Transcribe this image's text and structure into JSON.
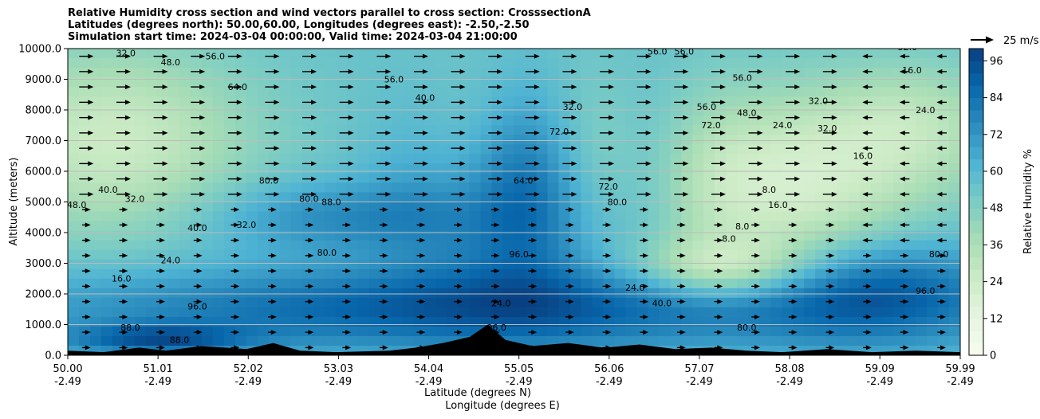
{
  "title": {
    "line1": "Relative Humidity cross section and wind vectors parallel to cross section: CrosssectionA",
    "line2": "Latitudes (degrees north): 50.00,60.00, Longitudes (degrees east): -2.50,-2.50",
    "line3": "Simulation start time: 2024-03-04 00:00:00, Valid time: 2024-03-04 21:00:00"
  },
  "chart_data": {
    "type": "heatmap",
    "subtype": "filled-contour cross section with wind vectors",
    "ylabel": "Altitude (meters)",
    "xlabel_lat": "Latitude (degrees N)",
    "xlabel_lon": "Longitude (degrees E)",
    "ylim": [
      0,
      10000
    ],
    "yticks": [
      "0.0",
      "1000.0",
      "2000.0",
      "3000.0",
      "4000.0",
      "5000.0",
      "6000.0",
      "7000.0",
      "8000.0",
      "9000.0",
      "10000.0"
    ],
    "ytick_values": [
      0,
      1000,
      2000,
      3000,
      4000,
      5000,
      6000,
      7000,
      8000,
      9000,
      10000
    ],
    "xlim": [
      50.0,
      59.99
    ],
    "xticks_lat": [
      "50.00",
      "51.01",
      "52.02",
      "53.03",
      "54.04",
      "55.05",
      "56.06",
      "57.07",
      "58.08",
      "59.09",
      "59.99"
    ],
    "xtick_values": [
      50.0,
      51.01,
      52.02,
      53.03,
      54.04,
      55.05,
      56.06,
      57.07,
      58.08,
      59.09,
      59.99
    ],
    "xticks_lon": [
      "-2.49",
      "-2.49",
      "-2.49",
      "-2.49",
      "-2.49",
      "-2.49",
      "-2.49",
      "-2.49",
      "-2.49",
      "-2.49",
      "-2.49"
    ],
    "colorbar": {
      "label": "Relative Humidity %",
      "ticks": [
        "0",
        "12",
        "24",
        "36",
        "48",
        "60",
        "72",
        "84",
        "96"
      ],
      "tick_values": [
        0,
        12,
        24,
        36,
        48,
        60,
        72,
        84,
        96
      ],
      "range": [
        0,
        100
      ],
      "colors": [
        "#f7fcf0",
        "#e5f5e0",
        "#ccebc5",
        "#a8ddb5",
        "#7bccc4",
        "#4eb3d3",
        "#2b8cbe",
        "#0868ac",
        "#084081"
      ]
    },
    "wind_key": "25 m/s",
    "contour_labels": [
      {
        "text": "32.0",
        "lat": 50.65,
        "alt": 9750
      },
      {
        "text": "48.0",
        "lat": 51.15,
        "alt": 9450
      },
      {
        "text": "56.0",
        "lat": 51.65,
        "alt": 9650
      },
      {
        "text": "64.0",
        "lat": 51.9,
        "alt": 8650
      },
      {
        "text": "40.0",
        "lat": 50.45,
        "alt": 5300
      },
      {
        "text": "32.0",
        "lat": 50.75,
        "alt": 5000
      },
      {
        "text": "48.0",
        "lat": 50.1,
        "alt": 4800
      },
      {
        "text": "40.0",
        "lat": 51.45,
        "alt": 4050
      },
      {
        "text": "32.0",
        "lat": 52.0,
        "alt": 4150
      },
      {
        "text": "80.0",
        "lat": 52.25,
        "alt": 5600
      },
      {
        "text": "80.0",
        "lat": 52.7,
        "alt": 5000
      },
      {
        "text": "88.0",
        "lat": 52.95,
        "alt": 4900
      },
      {
        "text": "80.0",
        "lat": 52.9,
        "alt": 3250
      },
      {
        "text": "96.0",
        "lat": 51.45,
        "alt": 1500
      },
      {
        "text": "16.0",
        "lat": 50.6,
        "alt": 2400
      },
      {
        "text": "24.0",
        "lat": 51.15,
        "alt": 3000
      },
      {
        "text": "40.0",
        "lat": 54.0,
        "alt": 8300
      },
      {
        "text": "56.0",
        "lat": 53.65,
        "alt": 8900
      },
      {
        "text": "96.0",
        "lat": 55.05,
        "alt": 3200
      },
      {
        "text": "64.0",
        "lat": 55.1,
        "alt": 5600
      },
      {
        "text": "72.0",
        "lat": 55.5,
        "alt": 7200
      },
      {
        "text": "72.0",
        "lat": 56.05,
        "alt": 5400
      },
      {
        "text": "80.0",
        "lat": 56.15,
        "alt": 4900
      },
      {
        "text": "32.0",
        "lat": 55.65,
        "alt": 8000
      },
      {
        "text": "56.0",
        "lat": 56.6,
        "alt": 9800
      },
      {
        "text": "56.0",
        "lat": 56.9,
        "alt": 9800
      },
      {
        "text": "56.0",
        "lat": 57.55,
        "alt": 8950
      },
      {
        "text": "56.0",
        "lat": 57.15,
        "alt": 8000
      },
      {
        "text": "72.0",
        "lat": 57.2,
        "alt": 7400
      },
      {
        "text": "48.0",
        "lat": 57.6,
        "alt": 7800
      },
      {
        "text": "32.0",
        "lat": 58.4,
        "alt": 8200
      },
      {
        "text": "24.0",
        "lat": 58.0,
        "alt": 7400
      },
      {
        "text": "32.0",
        "lat": 58.5,
        "alt": 7300
      },
      {
        "text": "16.0",
        "lat": 59.45,
        "alt": 9200
      },
      {
        "text": "24.0",
        "lat": 59.6,
        "alt": 7900
      },
      {
        "text": "32.0",
        "lat": 59.4,
        "alt": 9950
      },
      {
        "text": "16.0",
        "lat": 58.9,
        "alt": 6400
      },
      {
        "text": "8.0",
        "lat": 57.85,
        "alt": 5300
      },
      {
        "text": "16.0",
        "lat": 57.95,
        "alt": 4800
      },
      {
        "text": "8.0",
        "lat": 57.4,
        "alt": 3700
      },
      {
        "text": "8.0",
        "lat": 57.55,
        "alt": 4100
      },
      {
        "text": "24.0",
        "lat": 56.35,
        "alt": 2100
      },
      {
        "text": "40.0",
        "lat": 56.65,
        "alt": 1600
      },
      {
        "text": "80.0",
        "lat": 57.6,
        "alt": 800
      },
      {
        "text": "80.0",
        "lat": 59.75,
        "alt": 3200
      },
      {
        "text": "96.0",
        "lat": 59.6,
        "alt": 2000
      },
      {
        "text": "24.0",
        "lat": 54.85,
        "alt": 1600
      },
      {
        "text": "96.0",
        "lat": 54.8,
        "alt": 800
      },
      {
        "text": "88.0",
        "lat": 50.7,
        "alt": 800
      },
      {
        "text": "88.0",
        "lat": 51.25,
        "alt": 400
      }
    ]
  }
}
